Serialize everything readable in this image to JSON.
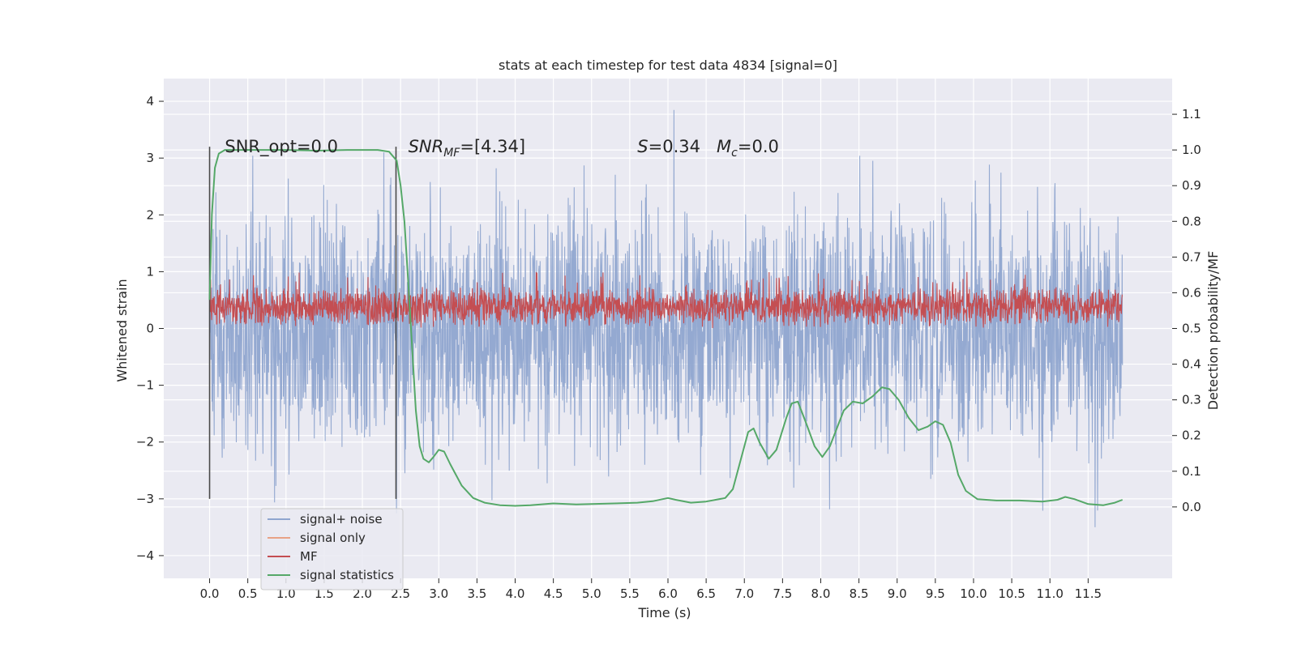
{
  "chart_data": {
    "type": "line",
    "title": "stats at each timestep for test data 4834 [signal=0]",
    "xlabel": "Time (s)",
    "ylabel_left": "Whitened strain",
    "ylabel_right": "Detection probability/MF",
    "xlim": [
      -0.6,
      12.6
    ],
    "ylim_left": [
      -4.4,
      4.4
    ],
    "ylim_right": [
      -0.2,
      1.2
    ],
    "x_ticks": [
      0.0,
      0.5,
      1.0,
      1.5,
      2.0,
      2.5,
      3.0,
      3.5,
      4.0,
      4.5,
      5.0,
      5.5,
      6.0,
      6.5,
      7.0,
      7.5,
      8.0,
      8.5,
      9.0,
      9.5,
      10.0,
      10.5,
      11.0,
      11.5
    ],
    "x_tick_labels": [
      "0.0",
      "0.5",
      "1.0",
      "1.5",
      "2.0",
      "2.5",
      "3.0",
      "3.5",
      "4.0",
      "4.5",
      "5.0",
      "5.5",
      "6.0",
      "6.5",
      "7.0",
      "7.5",
      "8.0",
      "8.5",
      "9.0",
      "9.5",
      "10.0",
      "10.5",
      "11.0",
      "11.5"
    ],
    "y_left_ticks": [
      -4,
      -3,
      -2,
      -1,
      0,
      1,
      2,
      3,
      4
    ],
    "y_left_tick_labels": [
      "−4",
      "−3",
      "−2",
      "−1",
      "0",
      "1",
      "2",
      "3",
      "4"
    ],
    "y_right_ticks": [
      0.0,
      0.1,
      0.2,
      0.3,
      0.4,
      0.5,
      0.6,
      0.7,
      0.8,
      0.9,
      1.0,
      1.1
    ],
    "y_right_tick_labels": [
      "0.0",
      "0.1",
      "0.2",
      "0.3",
      "0.4",
      "0.5",
      "0.6",
      "0.7",
      "0.8",
      "0.9",
      "1.0",
      "1.1"
    ],
    "grid": true,
    "legend_position": "lower-left",
    "annotations": [
      {
        "text": "SNR_opt=0.0",
        "x": 0.2,
        "y": 3.2
      },
      {
        "text": "SNR_MF=[4.34]",
        "x": 2.6,
        "y": 3.2
      },
      {
        "text": "S=0.34   M_c=0.0",
        "x": 5.6,
        "y": 3.2
      }
    ],
    "vertical_markers": [
      {
        "x": 0.0,
        "y_range": [
          -3.0,
          3.2
        ]
      },
      {
        "x": 2.44,
        "y_range": [
          -3.0,
          3.2
        ]
      }
    ],
    "series": [
      {
        "name": "signal+ noise",
        "color": "#8fa5cf",
        "axis": "left",
        "x_range": [
          0.0,
          11.95
        ],
        "typical_envelope": [
          -2.5,
          2.5
        ],
        "approx_extremes": {
          "max": 4.1,
          "min": -3.9
        }
      },
      {
        "name": "signal only",
        "color": "#e8a286",
        "axis": "left",
        "points": []
      },
      {
        "name": "MF",
        "color": "#c44e52",
        "axis": "right",
        "x_range": [
          0.0,
          11.95
        ],
        "typical_band": [
          0.5,
          0.62
        ],
        "approx_peak": 0.66
      },
      {
        "name": "signal statistics",
        "color": "#55a868",
        "axis": "right",
        "points": [
          [
            0.0,
            0.58
          ],
          [
            0.03,
            0.82
          ],
          [
            0.07,
            0.95
          ],
          [
            0.12,
            0.99
          ],
          [
            0.2,
            1.0
          ],
          [
            0.6,
            1.0
          ],
          [
            1.0,
            1.0
          ],
          [
            1.4,
            0.998
          ],
          [
            1.8,
            1.0
          ],
          [
            2.2,
            1.0
          ],
          [
            2.35,
            0.995
          ],
          [
            2.45,
            0.97
          ],
          [
            2.5,
            0.9
          ],
          [
            2.55,
            0.8
          ],
          [
            2.6,
            0.63
          ],
          [
            2.65,
            0.45
          ],
          [
            2.7,
            0.27
          ],
          [
            2.75,
            0.17
          ],
          [
            2.8,
            0.135
          ],
          [
            2.87,
            0.125
          ],
          [
            2.93,
            0.14
          ],
          [
            3.0,
            0.16
          ],
          [
            3.07,
            0.155
          ],
          [
            3.15,
            0.12
          ],
          [
            3.3,
            0.06
          ],
          [
            3.45,
            0.025
          ],
          [
            3.6,
            0.012
          ],
          [
            3.8,
            0.005
          ],
          [
            4.0,
            0.003
          ],
          [
            4.2,
            0.005
          ],
          [
            4.5,
            0.01
          ],
          [
            4.8,
            0.007
          ],
          [
            5.0,
            0.008
          ],
          [
            5.3,
            0.01
          ],
          [
            5.6,
            0.012
          ],
          [
            5.8,
            0.016
          ],
          [
            6.0,
            0.025
          ],
          [
            6.1,
            0.02
          ],
          [
            6.3,
            0.012
          ],
          [
            6.5,
            0.015
          ],
          [
            6.75,
            0.025
          ],
          [
            6.85,
            0.05
          ],
          [
            6.95,
            0.13
          ],
          [
            7.05,
            0.21
          ],
          [
            7.12,
            0.22
          ],
          [
            7.2,
            0.18
          ],
          [
            7.32,
            0.135
          ],
          [
            7.42,
            0.16
          ],
          [
            7.55,
            0.25
          ],
          [
            7.62,
            0.29
          ],
          [
            7.7,
            0.295
          ],
          [
            7.8,
            0.24
          ],
          [
            7.92,
            0.17
          ],
          [
            8.02,
            0.14
          ],
          [
            8.12,
            0.17
          ],
          [
            8.3,
            0.27
          ],
          [
            8.42,
            0.295
          ],
          [
            8.55,
            0.29
          ],
          [
            8.68,
            0.31
          ],
          [
            8.8,
            0.335
          ],
          [
            8.9,
            0.33
          ],
          [
            9.02,
            0.3
          ],
          [
            9.15,
            0.25
          ],
          [
            9.28,
            0.215
          ],
          [
            9.4,
            0.225
          ],
          [
            9.5,
            0.24
          ],
          [
            9.6,
            0.23
          ],
          [
            9.7,
            0.18
          ],
          [
            9.8,
            0.09
          ],
          [
            9.9,
            0.045
          ],
          [
            10.05,
            0.022
          ],
          [
            10.3,
            0.018
          ],
          [
            10.6,
            0.018
          ],
          [
            10.9,
            0.015
          ],
          [
            11.1,
            0.02
          ],
          [
            11.2,
            0.028
          ],
          [
            11.32,
            0.022
          ],
          [
            11.5,
            0.008
          ],
          [
            11.7,
            0.005
          ],
          [
            11.85,
            0.012
          ],
          [
            11.95,
            0.02
          ]
        ]
      }
    ]
  }
}
